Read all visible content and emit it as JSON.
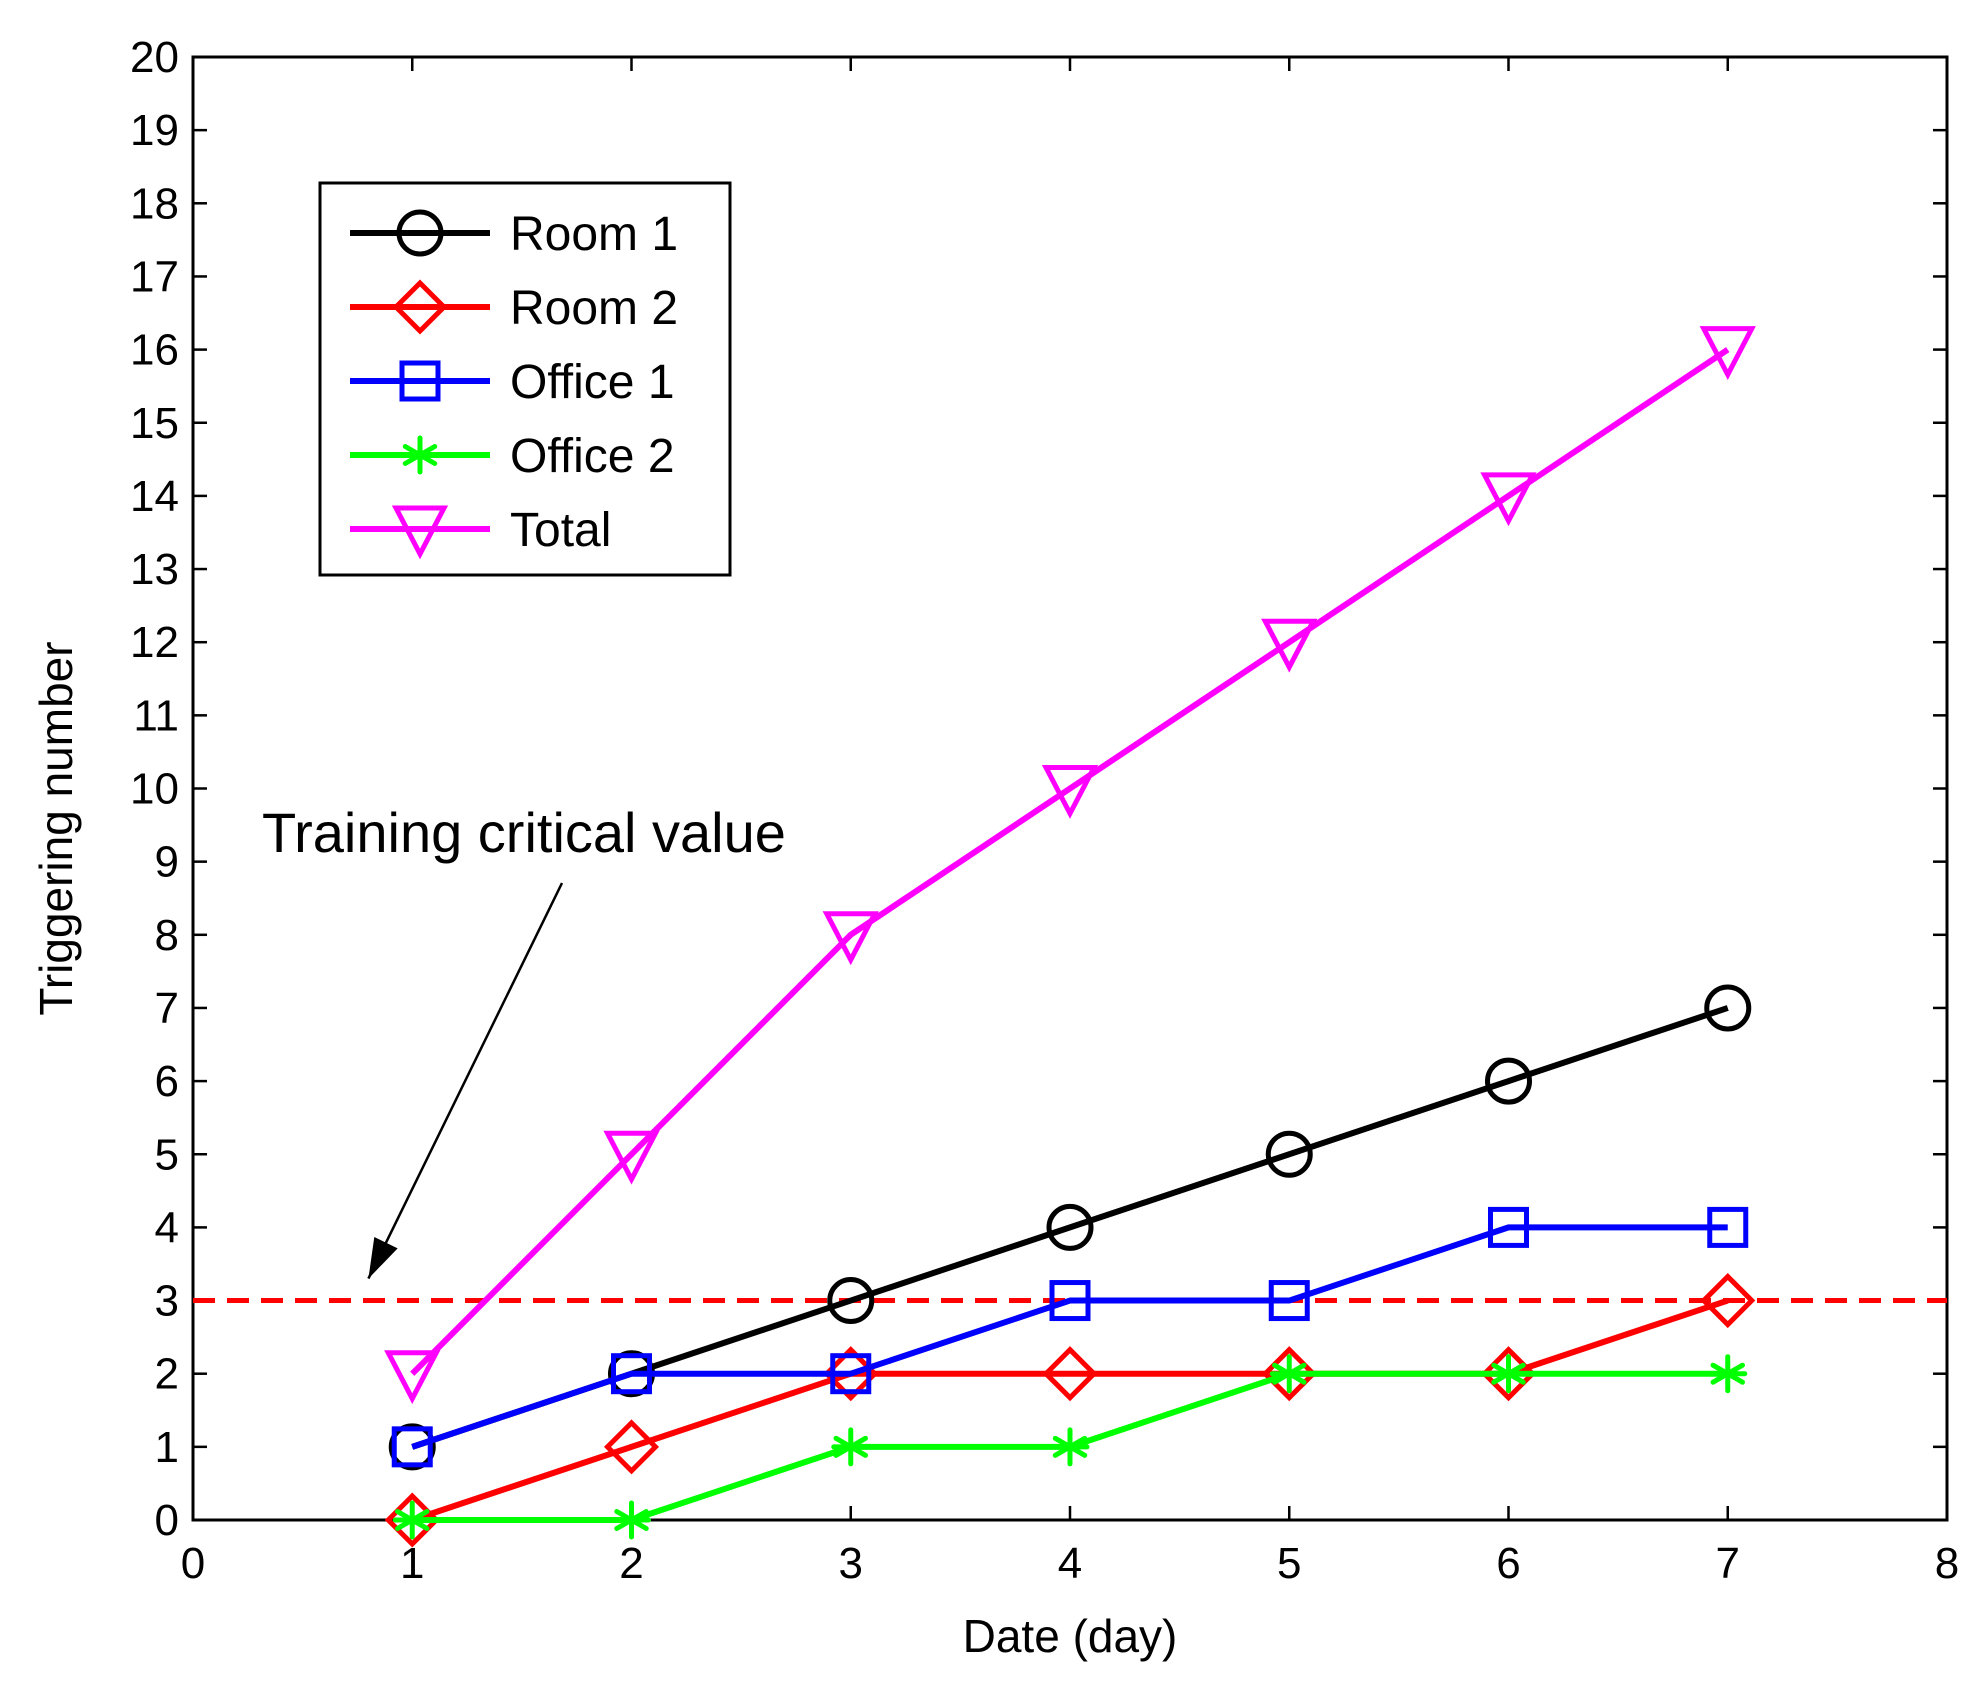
{
  "chart_data": {
    "type": "line",
    "title": "",
    "xlabel": "Date (day)",
    "ylabel": "Triggering number",
    "xlim": [
      0,
      8
    ],
    "ylim": [
      0,
      20
    ],
    "x_ticks": [
      0,
      1,
      2,
      3,
      4,
      5,
      6,
      7,
      8
    ],
    "y_ticks": [
      0,
      1,
      2,
      3,
      4,
      5,
      6,
      7,
      8,
      9,
      10,
      11,
      12,
      13,
      14,
      15,
      16,
      17,
      18,
      19,
      20
    ],
    "grid": false,
    "legend_position": "top-left",
    "x": [
      1,
      2,
      3,
      4,
      5,
      6,
      7
    ],
    "series": [
      {
        "name": "Room 1",
        "color": "#000000",
        "marker": "circle",
        "values": [
          1,
          2,
          3,
          4,
          5,
          6,
          7
        ]
      },
      {
        "name": "Room 2",
        "color": "#ff0000",
        "marker": "diamond",
        "values": [
          0,
          1,
          2,
          2,
          2,
          2,
          3
        ]
      },
      {
        "name": "Office 1",
        "color": "#0000ff",
        "marker": "square",
        "values": [
          1,
          2,
          2,
          3,
          3,
          4,
          4
        ]
      },
      {
        "name": "Office 2",
        "color": "#00ff00",
        "marker": "asterisk",
        "values": [
          0,
          0,
          1,
          1,
          2,
          2,
          2
        ]
      },
      {
        "name": "Total",
        "color": "#ff00ff",
        "marker": "triangle-down",
        "values": [
          2,
          5,
          8,
          10,
          12,
          14,
          16
        ]
      }
    ],
    "reference_line": {
      "y": 3,
      "color": "#ff0000",
      "style": "dashed"
    },
    "annotation": {
      "text": "Training critical value",
      "points_to_x": 0.8,
      "points_to_y": 3.3
    }
  }
}
